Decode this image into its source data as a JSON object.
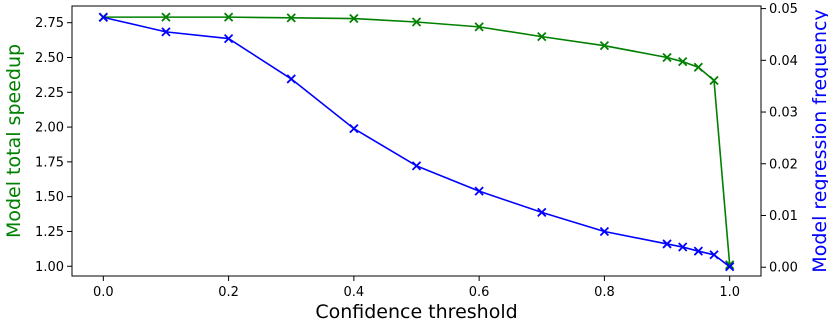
{
  "chart_data": {
    "type": "line",
    "xlabel": "Confidence threshold",
    "ylabel_left": "Model total speedup",
    "ylabel_right": "Model regression frequency",
    "x": [
      0.0,
      0.1,
      0.2,
      0.3,
      0.4,
      0.5,
      0.6,
      0.7,
      0.8,
      0.9,
      0.925,
      0.95,
      0.975,
      1.0
    ],
    "xlim": [
      -0.05,
      1.05
    ],
    "ylim_left": [
      0.93,
      2.87
    ],
    "ylim_right": [
      -0.0017,
      0.0505
    ],
    "x_ticks": [
      0.0,
      0.2,
      0.4,
      0.6,
      0.8,
      1.0
    ],
    "x_tick_labels": [
      "0.0",
      "0.2",
      "0.4",
      "0.6",
      "0.8",
      "1.0"
    ],
    "y_left_ticks": [
      1.0,
      1.25,
      1.5,
      1.75,
      2.0,
      2.25,
      2.5,
      2.75
    ],
    "y_left_tick_labels": [
      "1.00",
      "1.25",
      "1.50",
      "1.75",
      "2.00",
      "2.25",
      "2.50",
      "2.75"
    ],
    "y_right_ticks": [
      0.0,
      0.01,
      0.02,
      0.03,
      0.04,
      0.05
    ],
    "y_right_tick_labels": [
      "0.00",
      "0.01",
      "0.02",
      "0.03",
      "0.04",
      "0.05"
    ],
    "grid": false,
    "series": [
      {
        "axis": "left",
        "color": "#008000",
        "marker": "x",
        "values": [
          2.79,
          2.79,
          2.79,
          2.785,
          2.78,
          2.755,
          2.72,
          2.65,
          2.585,
          2.5,
          2.47,
          2.43,
          2.335,
          1.01
        ]
      },
      {
        "axis": "right",
        "color": "#0000ff",
        "marker": "x",
        "values": [
          0.0483,
          0.0455,
          0.0442,
          0.0364,
          0.0268,
          0.0196,
          0.0147,
          0.0106,
          0.0069,
          0.0045,
          0.0039,
          0.0031,
          0.0024,
          0.0001
        ]
      }
    ]
  }
}
